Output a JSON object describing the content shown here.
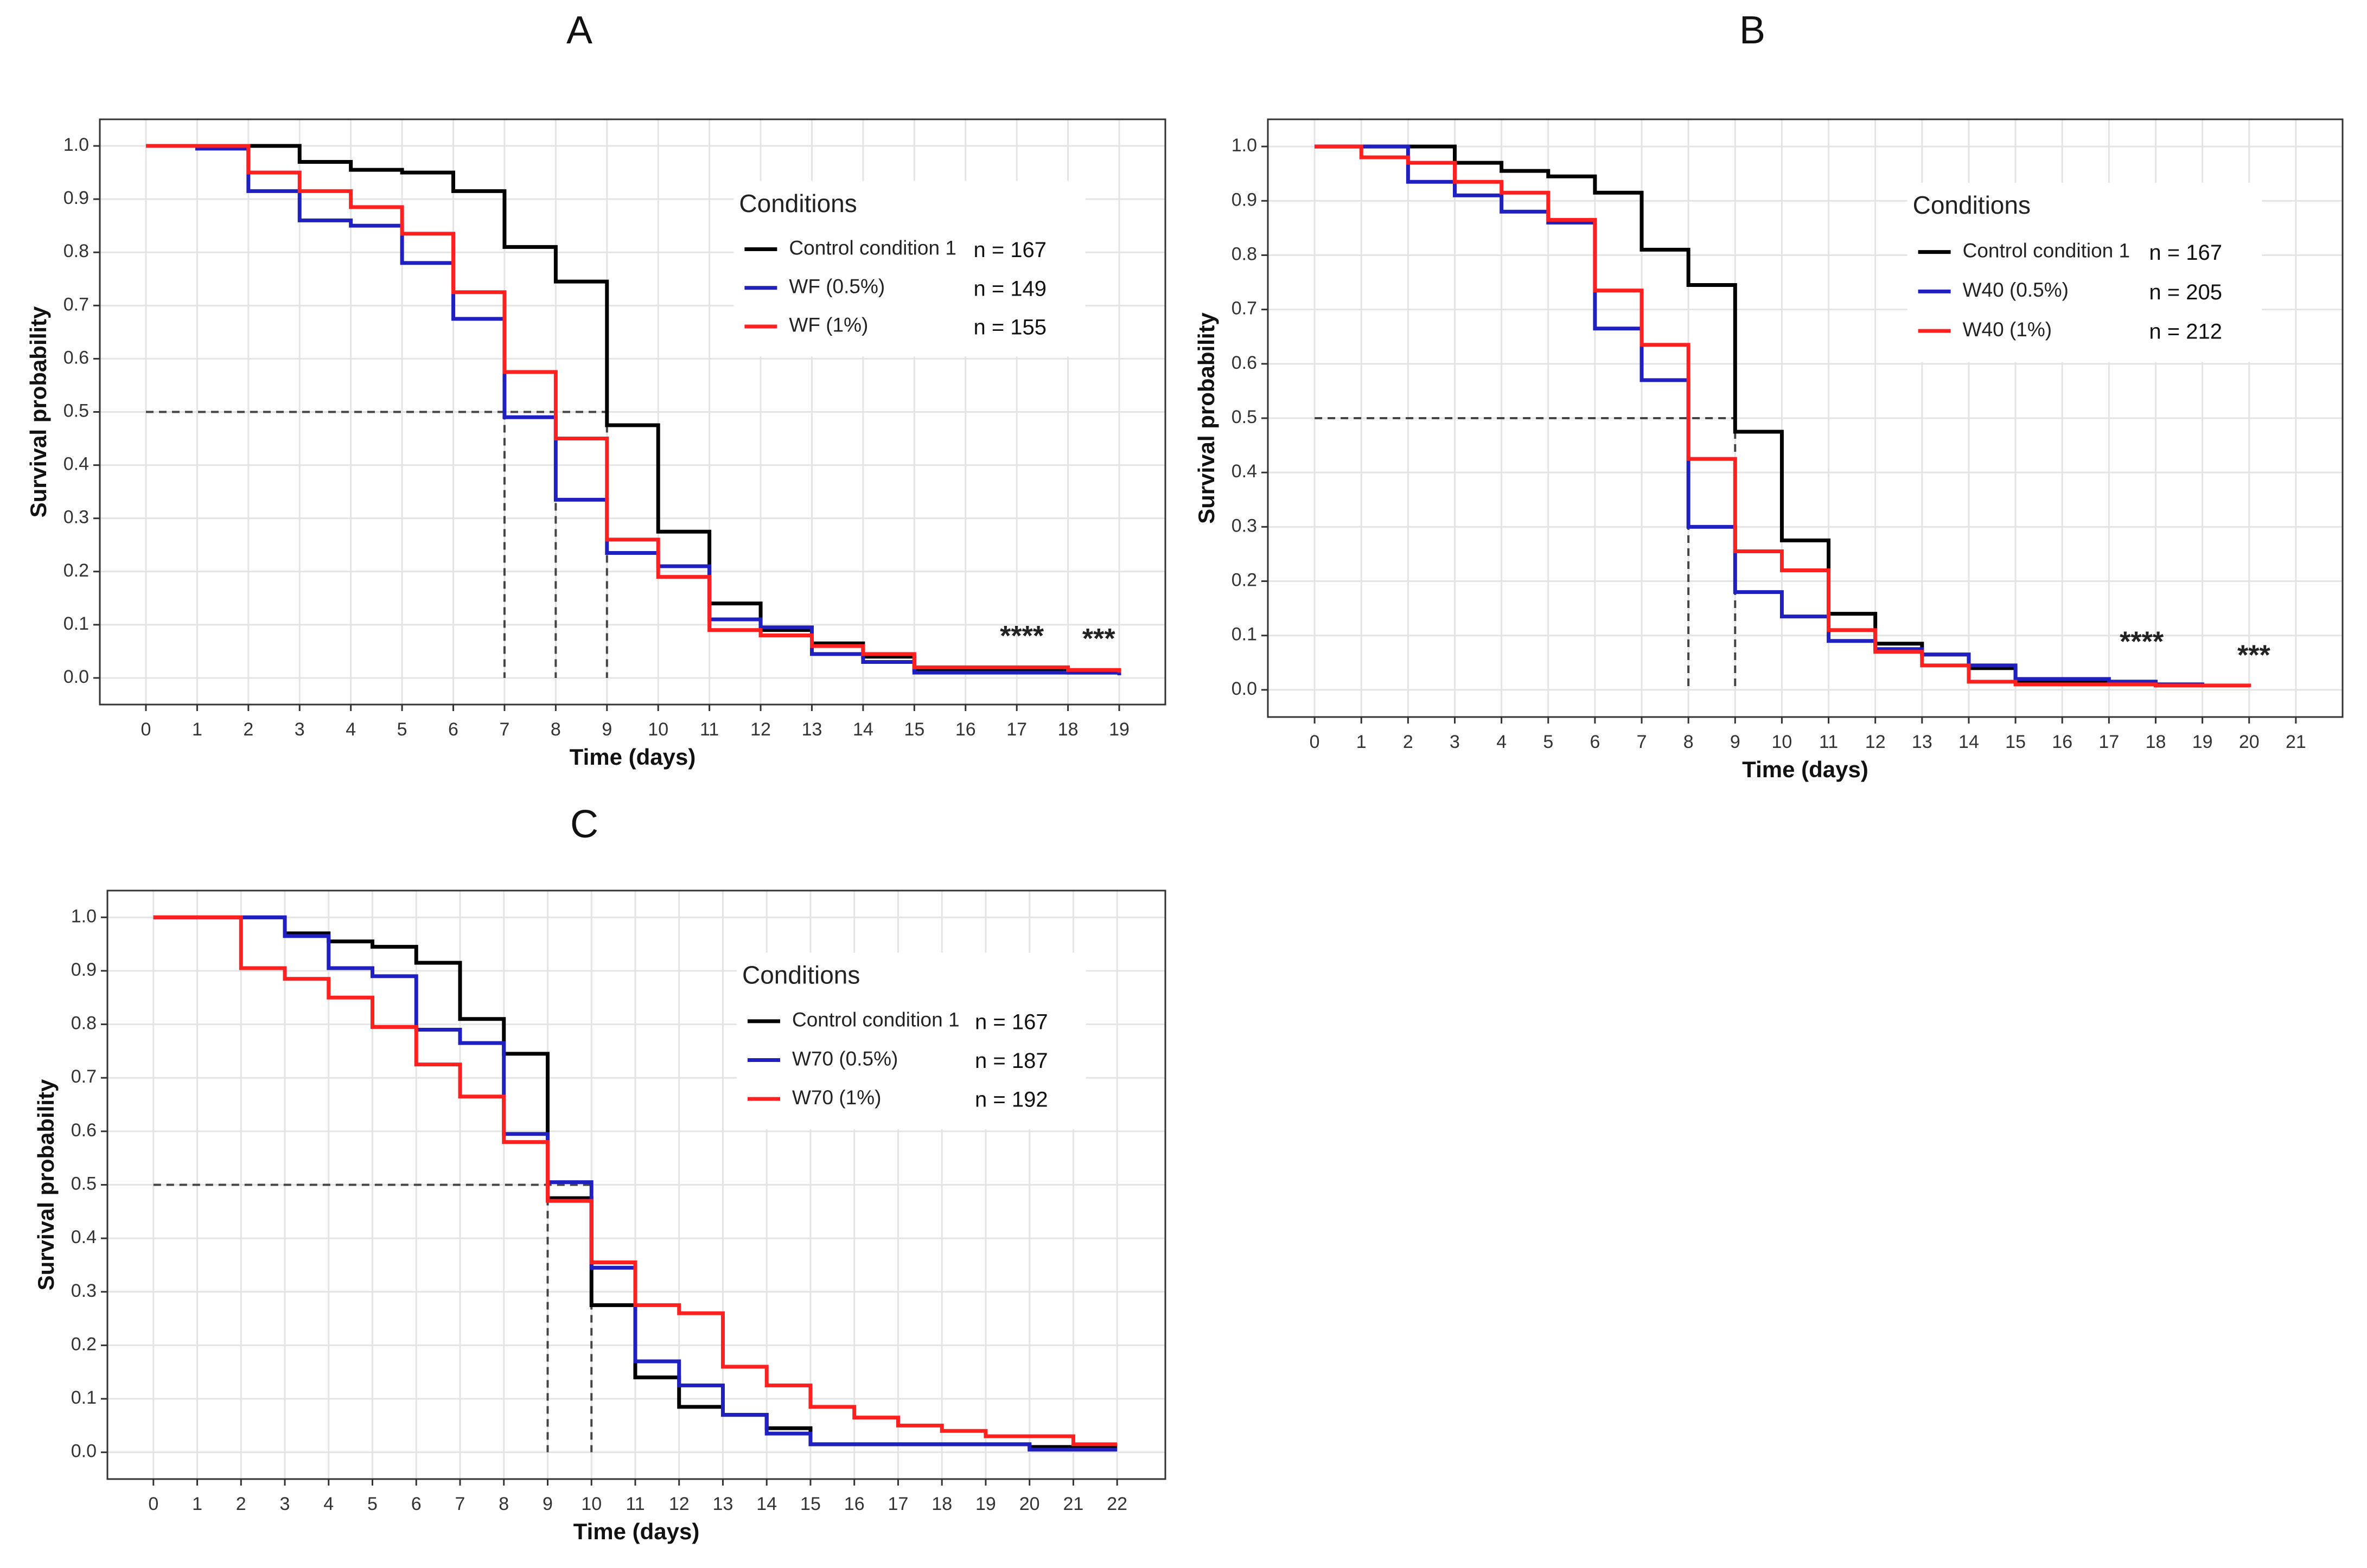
{
  "chart_data": [
    {
      "type": "step",
      "panel_label": "A",
      "xlabel": "Time (days)",
      "ylabel": "Survival probability",
      "legend_title": "Conditions",
      "x": [
        0,
        1,
        2,
        3,
        4,
        5,
        6,
        7,
        8,
        9,
        10,
        11,
        12,
        13,
        14,
        15,
        16,
        17,
        18,
        19
      ],
      "series": [
        {
          "name": "Control condition 1",
          "n_label": "n = 167",
          "color": "#000000",
          "values": [
            1,
            1,
            1,
            0.97,
            0.955,
            0.95,
            0.915,
            0.81,
            0.745,
            0.475,
            0.275,
            0.14,
            0.09,
            0.065,
            0.04,
            0.015,
            0.015,
            0.015,
            0.01,
            0.01
          ]
        },
        {
          "name": "WF (0.5%)",
          "n_label": "n = 149",
          "color": "#2020c0",
          "values": [
            1,
            0.995,
            0.915,
            0.86,
            0.85,
            0.78,
            0.675,
            0.49,
            0.335,
            0.235,
            0.21,
            0.11,
            0.095,
            0.045,
            0.03,
            0.01,
            0.01,
            0.01,
            0.01,
            0.005
          ]
        },
        {
          "name": "WF (1%)",
          "n_label": "n = 155",
          "color": "#ff2020",
          "values": [
            1,
            1,
            0.95,
            0.915,
            0.885,
            0.835,
            0.725,
            0.575,
            0.45,
            0.26,
            0.19,
            0.09,
            0.08,
            0.06,
            0.045,
            0.02,
            0.02,
            0.02,
            0.015,
            0.01
          ]
        }
      ],
      "median_survival": 0.5,
      "medians": [
        7,
        8,
        9
      ],
      "annotations": [
        {
          "text": "****",
          "color": "#0070c0"
        },
        {
          "text": "***",
          "color": "#e02020"
        }
      ],
      "xlim": [
        -0.9,
        19.9
      ],
      "xticks": [
        0,
        1,
        2,
        3,
        4,
        5,
        6,
        7,
        8,
        9,
        10,
        11,
        12,
        13,
        14,
        15,
        16,
        17,
        18,
        19
      ],
      "ylim": [
        -0.05,
        1.05
      ],
      "yticks": [
        {
          "value": 0,
          "label": "0.0"
        },
        0.1,
        0.2,
        0.3,
        0.4,
        0.5,
        0.6,
        0.7,
        0.8,
        0.9,
        {
          "value": 1,
          "label": "1.0"
        }
      ],
      "grid": true
    },
    {
      "type": "step",
      "panel_label": "B",
      "xlabel": "Time (days)",
      "ylabel": "Survival probability",
      "legend_title": "Conditions",
      "x": [
        0,
        1,
        2,
        3,
        4,
        5,
        6,
        7,
        8,
        9,
        10,
        11,
        12,
        13,
        14,
        15,
        16,
        17,
        18,
        19,
        20
      ],
      "series": [
        {
          "name": "Control condition 1",
          "n_label": "n = 167",
          "color": "#000000",
          "values": [
            1,
            1,
            1,
            0.97,
            0.955,
            0.945,
            0.915,
            0.81,
            0.745,
            0.475,
            0.275,
            0.14,
            0.085,
            0.065,
            0.04,
            0.015,
            0.015,
            0.015,
            0.01,
            0.01,
            null
          ]
        },
        {
          "name": "W40 (0.5%)",
          "n_label": "n = 205",
          "color": "#2020c0",
          "values": [
            1,
            1,
            0.935,
            0.91,
            0.88,
            0.86,
            0.665,
            0.57,
            0.3,
            0.18,
            0.135,
            0.09,
            0.075,
            0.065,
            0.045,
            0.02,
            0.02,
            0.015,
            0.01,
            0.005,
            null
          ]
        },
        {
          "name": "W40 (1%)",
          "n_label": "n = 212",
          "color": "#ff2020",
          "values": [
            1,
            0.98,
            0.97,
            0.935,
            0.915,
            0.865,
            0.735,
            0.635,
            0.425,
            0.255,
            0.22,
            0.11,
            0.07,
            0.045,
            0.015,
            0.01,
            0.01,
            0.01,
            0.008,
            0.008,
            0.005
          ]
        }
      ],
      "median_survival": 0.5,
      "medians": [
        8,
        9
      ],
      "annotations": [
        {
          "text": "****",
          "color": "#0070c0"
        },
        {
          "text": "***",
          "color": "#e02020"
        }
      ],
      "xlim": [
        -1,
        22
      ],
      "xticks": [
        0,
        1,
        2,
        3,
        4,
        5,
        6,
        7,
        8,
        9,
        10,
        11,
        12,
        13,
        14,
        15,
        16,
        17,
        18,
        19,
        20,
        21
      ],
      "ylim": [
        -0.05,
        1.05
      ],
      "yticks": [
        {
          "value": 0,
          "label": "0.0"
        },
        0.1,
        0.2,
        0.3,
        0.4,
        0.5,
        0.6,
        0.7,
        0.8,
        0.9,
        {
          "value": 1,
          "label": "1.0"
        }
      ],
      "grid": true
    },
    {
      "type": "step",
      "panel_label": "C",
      "xlabel": "Time (days)",
      "ylabel": "Survival probability",
      "legend_title": "Conditions",
      "x": [
        0,
        1,
        2,
        3,
        4,
        5,
        6,
        7,
        8,
        9,
        10,
        11,
        12,
        13,
        14,
        15,
        16,
        17,
        18,
        19,
        20,
        21,
        22
      ],
      "series": [
        {
          "name": "Control condition 1",
          "n_label": "n = 167",
          "color": "#000000",
          "values": [
            1,
            1,
            1,
            0.97,
            0.955,
            0.945,
            0.915,
            0.81,
            0.745,
            0.475,
            0.275,
            0.14,
            0.085,
            0.07,
            0.045,
            0.015,
            0.015,
            0.015,
            0.015,
            0.015,
            0.01,
            0.01,
            0.01
          ]
        },
        {
          "name": "W70 (0.5%)",
          "n_label": "n = 187",
          "color": "#2020c0",
          "values": [
            1,
            1,
            1,
            0.965,
            0.905,
            0.89,
            0.79,
            0.765,
            0.595,
            0.505,
            0.345,
            0.17,
            0.125,
            0.07,
            0.035,
            0.015,
            0.015,
            0.015,
            0.015,
            0.015,
            0.005,
            0.005,
            0.005
          ]
        },
        {
          "name": "W70 (1%)",
          "n_label": "n = 192",
          "color": "#ff2020",
          "values": [
            1,
            1,
            0.905,
            0.885,
            0.85,
            0.795,
            0.725,
            0.665,
            0.58,
            0.47,
            0.355,
            0.275,
            0.26,
            0.16,
            0.125,
            0.085,
            0.065,
            0.05,
            0.04,
            0.03,
            0.03,
            0.015,
            0.015
          ]
        }
      ],
      "median_survival": 0.5,
      "medians": [
        9,
        10
      ],
      "annotations": [],
      "xlim": [
        -1.05,
        23.1
      ],
      "xticks": [
        0,
        1,
        2,
        3,
        4,
        5,
        6,
        7,
        8,
        9,
        10,
        11,
        12,
        13,
        14,
        15,
        16,
        17,
        18,
        19,
        20,
        21,
        22
      ],
      "ylim": [
        -0.05,
        1.05
      ],
      "yticks": [
        {
          "value": 0,
          "label": "0.0"
        },
        0.1,
        0.2,
        0.3,
        0.4,
        0.5,
        0.6,
        0.7,
        0.8,
        0.9,
        {
          "value": 1,
          "label": "1.0"
        }
      ],
      "grid": true
    }
  ]
}
